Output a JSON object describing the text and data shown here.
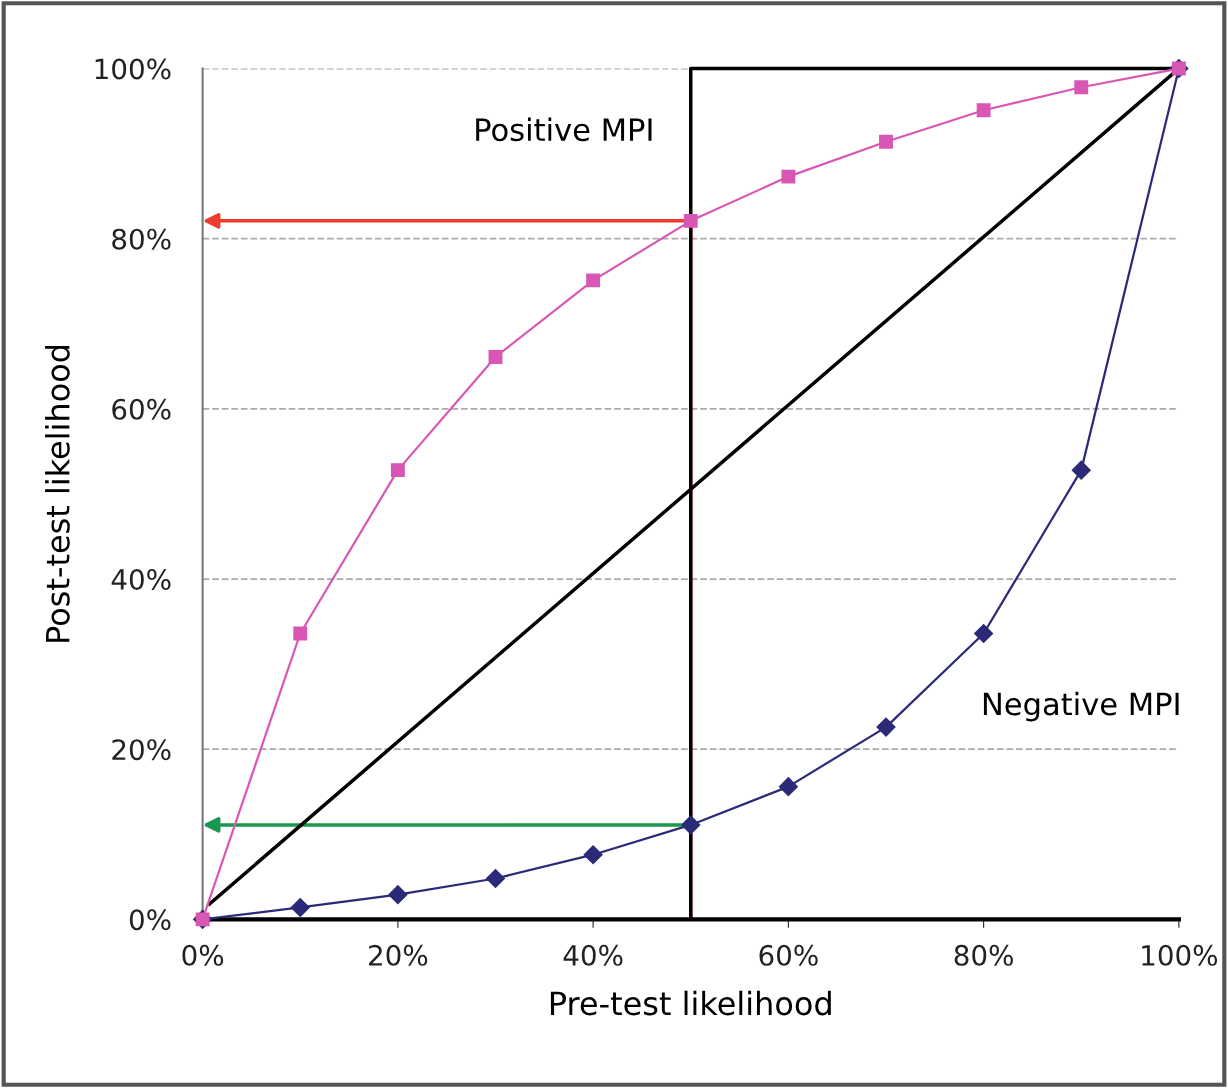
{
  "chart_data": {
    "type": "line",
    "xlabel": "Pre-test likelihood",
    "ylabel": "Post-test likelihood",
    "x": [
      0,
      10,
      20,
      30,
      40,
      50,
      60,
      70,
      80,
      90,
      100
    ],
    "series": [
      {
        "color": "#d957b4",
        "marker": "square",
        "values": [
          0,
          33.6,
          52.8,
          66.1,
          75.1,
          82.1,
          87.3,
          91.4,
          95.1,
          97.8,
          100
        ]
      },
      {
        "color": "#2b2a78",
        "marker": "diamond",
        "values": [
          0,
          1.4,
          2.9,
          4.8,
          7.6,
          11.1,
          15.6,
          22.6,
          33.6,
          52.8,
          100
        ]
      },
      {
        "color": "#000000",
        "marker": "none",
        "x": [
          0.7,
          100
        ],
        "values": [
          1.8,
          100
        ]
      },
      {
        "color": "#000000",
        "marker": "none",
        "x": [
          50,
          50,
          100
        ],
        "values": [
          0,
          100,
          100
        ]
      }
    ],
    "annotations": [
      "Positive MPI",
      "Negative MPI"
    ],
    "xlim": [
      0,
      100
    ],
    "ylim": [
      0,
      100
    ],
    "xticks": [
      {
        "value": 0,
        "label": "0%"
      },
      {
        "value": 20,
        "label": "20%"
      },
      {
        "value": 40,
        "label": "40%"
      },
      {
        "value": 60,
        "label": "60%"
      },
      {
        "value": 80,
        "label": "80%"
      },
      {
        "value": 100,
        "label": "100%"
      }
    ],
    "yticks": [
      {
        "value": 0,
        "label": "0%"
      },
      {
        "value": 20,
        "label": "20%"
      },
      {
        "value": 40,
        "label": "40%"
      },
      {
        "value": 60,
        "label": "60%"
      },
      {
        "value": 80,
        "label": "80%"
      },
      {
        "value": 100,
        "label": "100%"
      }
    ],
    "grid": "y",
    "legend": false
  }
}
